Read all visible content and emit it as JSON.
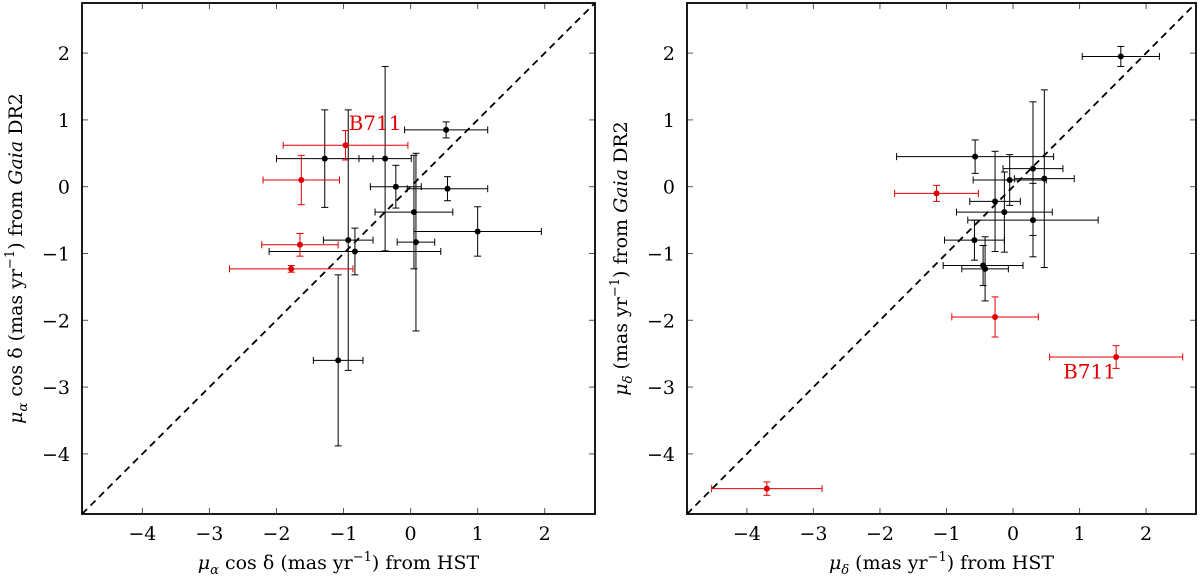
{
  "colors": {
    "default": "#000000",
    "highlight": "#e00000"
  },
  "chart_data": [
    {
      "type": "scatter",
      "xlabel": "μα cos δ (mas yr⁻¹) from HST",
      "ylabel": "μα cos δ (mas yr⁻¹) from Gaia DR2",
      "xlabel_parts": {
        "pre": "μ",
        "sub": "α",
        "mid": " cos δ  (mas yr",
        "sup": "−1",
        "post": ") from HST"
      },
      "ylabel_parts": {
        "pre": "μ",
        "sub": "α",
        "mid": " cos δ  (mas yr",
        "sup": "−1",
        "post1": ") from ",
        "italic": "Gaia",
        "post2": " DR2"
      },
      "xlim": [
        -4.9,
        2.75
      ],
      "ylim": [
        -4.9,
        2.75
      ],
      "xticks": [
        -4,
        -3,
        -2,
        -1,
        0,
        1,
        2
      ],
      "yticks": [
        -4,
        -3,
        -2,
        -1,
        0,
        1,
        2
      ],
      "xtick_labels": [
        "−4",
        "−3",
        "−2",
        "−1",
        "0",
        "1",
        "2"
      ],
      "ytick_labels": [
        "−4",
        "−3",
        "−2",
        "−1",
        "0",
        "1",
        "2"
      ],
      "reference_line": "y = x",
      "annotations": [
        {
          "text": "B711",
          "x": -0.53,
          "y": 0.85
        }
      ],
      "series": [
        {
          "name": "black points",
          "color": "#000000",
          "points": [
            {
              "x": 0.53,
              "y": 0.85,
              "xerr": 0.62,
              "yerr": 0.12
            },
            {
              "x": -1.28,
              "y": 0.42,
              "xerr": 0.72,
              "yerr": 0.73
            },
            {
              "x": -0.38,
              "y": 0.42,
              "xerr": 0.39,
              "yerr": 1.38
            },
            {
              "x": -0.22,
              "y": 0.0,
              "xerr": 0.38,
              "yerr": 0.32
            },
            {
              "x": 0.55,
              "y": -0.03,
              "xerr": 0.6,
              "yerr": 0.18
            },
            {
              "x": 0.05,
              "y": -0.38,
              "xerr": 0.58,
              "yerr": 0.85
            },
            {
              "x": 1.0,
              "y": -0.67,
              "xerr": 0.95,
              "yerr": 0.37
            },
            {
              "x": -0.93,
              "y": -0.8,
              "xerr": 0.37,
              "yerr": 1.95
            },
            {
              "x": 0.08,
              "y": -0.83,
              "xerr": 0.28,
              "yerr": 1.33
            },
            {
              "x": -0.83,
              "y": -0.97,
              "xerr": 1.28,
              "yerr": 0.35
            },
            {
              "x": -1.08,
              "y": -2.6,
              "xerr": 0.37,
              "yerr": 1.28
            }
          ]
        },
        {
          "name": "red points",
          "color": "#e00000",
          "points": [
            {
              "x": -0.97,
              "y": 0.62,
              "xerr": 0.93,
              "yerr": 0.22
            },
            {
              "x": -1.63,
              "y": 0.1,
              "xerr": 0.57,
              "yerr": 0.37
            },
            {
              "x": -1.65,
              "y": -0.87,
              "xerr": 0.57,
              "yerr": 0.17
            },
            {
              "x": -1.78,
              "y": -1.23,
              "xerr": 0.92,
              "yerr": 0.05
            }
          ]
        }
      ]
    },
    {
      "type": "scatter",
      "xlabel": "μδ (mas yr⁻¹) from HST",
      "ylabel": "μδ (mas yr⁻¹) from Gaia DR2",
      "xlabel_parts": {
        "pre": "μ",
        "sub": "δ",
        "mid": "  (mas yr",
        "sup": "−1",
        "post": ") from HST"
      },
      "ylabel_parts": {
        "pre": "μ",
        "sub": "δ",
        "mid": "  (mas yr",
        "sup": "−1",
        "post1": ") from ",
        "italic": "Gaia",
        "post2": " DR2"
      },
      "xlim": [
        -4.9,
        2.75
      ],
      "ylim": [
        -4.9,
        2.75
      ],
      "xticks": [
        -4,
        -3,
        -2,
        -1,
        0,
        1,
        2
      ],
      "yticks": [
        -4,
        -3,
        -2,
        -1,
        0,
        1,
        2
      ],
      "xtick_labels": [
        "−4",
        "−3",
        "−2",
        "−1",
        "0",
        "1",
        "2"
      ],
      "ytick_labels": [
        "−4",
        "−3",
        "−2",
        "−1",
        "0",
        "1",
        "2"
      ],
      "reference_line": "y = x",
      "annotations": [
        {
          "text": "B711",
          "x": 1.15,
          "y": -2.87
        }
      ],
      "series": [
        {
          "name": "black points",
          "color": "#000000",
          "points": [
            {
              "x": 1.62,
              "y": 1.95,
              "xerr": 0.58,
              "yerr": 0.15
            },
            {
              "x": -0.57,
              "y": 0.45,
              "xerr": 1.18,
              "yerr": 0.25
            },
            {
              "x": 0.3,
              "y": 0.27,
              "xerr": 0.45,
              "yerr": 1.0
            },
            {
              "x": 0.47,
              "y": 0.12,
              "xerr": 0.45,
              "yerr": 1.33
            },
            {
              "x": -0.05,
              "y": 0.1,
              "xerr": 0.55,
              "yerr": 0.38
            },
            {
              "x": -0.27,
              "y": -0.22,
              "xerr": 0.38,
              "yerr": 0.75
            },
            {
              "x": -0.13,
              "y": -0.38,
              "xerr": 0.72,
              "yerr": 0.6
            },
            {
              "x": 0.3,
              "y": -0.5,
              "xerr": 0.98,
              "yerr": 0.55
            },
            {
              "x": -0.58,
              "y": -0.8,
              "xerr": 0.45,
              "yerr": 0.3
            },
            {
              "x": -0.45,
              "y": -1.18,
              "xerr": 0.6,
              "yerr": 0.3
            },
            {
              "x": -0.42,
              "y": -1.23,
              "xerr": 0.35,
              "yerr": 0.48
            }
          ]
        },
        {
          "name": "red points",
          "color": "#e00000",
          "points": [
            {
              "x": -1.15,
              "y": -0.1,
              "xerr": 0.63,
              "yerr": 0.12
            },
            {
              "x": -0.27,
              "y": -1.95,
              "xerr": 0.65,
              "yerr": 0.3
            },
            {
              "x": 1.55,
              "y": -2.55,
              "xerr": 1.0,
              "yerr": 0.17
            },
            {
              "x": -3.7,
              "y": -4.52,
              "xerr": 0.83,
              "yerr": 0.1
            }
          ]
        }
      ]
    }
  ]
}
